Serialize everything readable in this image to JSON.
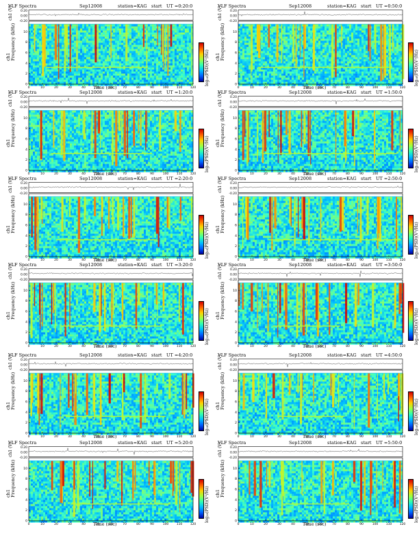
{
  "header": {
    "left": "VLF Spectra",
    "date": "Sep12008",
    "station": "station=KAG",
    "start": "start",
    "ut_prefix": "UT ="
  },
  "labels": {
    "channel": "ch1 (V)",
    "ylabel_line1": "ch1",
    "ylabel_line2": "Frequency (kHz)",
    "xlabel": "Time (sec)",
    "colorbar": "log₁₀(PSD)(V²/Hz)"
  },
  "chart_data": [
    {
      "type": "heatmap",
      "title_time": "0:20:0",
      "x": {
        "label": "Time (sec)",
        "range": [
          0,
          120
        ],
        "ticks": [
          0,
          10,
          20,
          30,
          40,
          50,
          60,
          70,
          80,
          90,
          100,
          110,
          120
        ]
      },
      "y": {
        "label": "Frequency (kHz)",
        "range": [
          0,
          12
        ],
        "ticks": [
          0,
          2,
          4,
          6,
          8,
          10
        ]
      },
      "ch_ticks": [
        "0.20",
        "0.00",
        "-0.20"
      ]
    },
    {
      "type": "heatmap",
      "title_time": "0:50:0",
      "x": {
        "label": "Time (sec)",
        "range": [
          0,
          120
        ],
        "ticks": [
          0,
          10,
          20,
          30,
          40,
          50,
          60,
          70,
          80,
          90,
          100,
          110,
          120
        ]
      },
      "y": {
        "label": "Frequency (kHz)",
        "range": [
          0,
          12
        ],
        "ticks": [
          0,
          2,
          4,
          6,
          8,
          10
        ]
      },
      "ch_ticks": [
        "0.20",
        "0.00",
        "-0.20"
      ]
    },
    {
      "type": "heatmap",
      "title_time": "1:20:0",
      "x": {
        "label": "Time (sec)",
        "range": [
          0,
          120
        ],
        "ticks": [
          0,
          10,
          20,
          30,
          40,
          50,
          60,
          70,
          80,
          90,
          100,
          110,
          120
        ]
      },
      "y": {
        "label": "Frequency (kHz)",
        "range": [
          0,
          12
        ],
        "ticks": [
          0,
          2,
          4,
          6,
          8,
          10
        ]
      },
      "ch_ticks": [
        "0.20",
        "0.00",
        "-0.20"
      ]
    },
    {
      "type": "heatmap",
      "title_time": "1:50:0",
      "x": {
        "label": "Time (sec)",
        "range": [
          0,
          120
        ],
        "ticks": [
          0,
          10,
          20,
          30,
          40,
          50,
          60,
          70,
          80,
          90,
          100,
          110,
          120
        ]
      },
      "y": {
        "label": "Frequency (kHz)",
        "range": [
          0,
          12
        ],
        "ticks": [
          0,
          2,
          4,
          6,
          8,
          10
        ]
      },
      "ch_ticks": [
        "0.20",
        "0.00",
        "-0.20"
      ]
    },
    {
      "type": "heatmap",
      "title_time": "2:20:0",
      "x": {
        "label": "Time (sec)",
        "range": [
          0,
          120
        ],
        "ticks": [
          0,
          10,
          20,
          30,
          40,
          50,
          60,
          70,
          80,
          90,
          100,
          110,
          120
        ]
      },
      "y": {
        "label": "Frequency (kHz)",
        "range": [
          0,
          12
        ],
        "ticks": [
          0,
          2,
          4,
          6,
          8,
          10
        ]
      },
      "ch_ticks": [
        "0.20",
        "0.00",
        "-0.20"
      ]
    },
    {
      "type": "heatmap",
      "title_time": "2:50:0",
      "x": {
        "label": "Time (sec)",
        "range": [
          0,
          120
        ],
        "ticks": [
          0,
          10,
          20,
          30,
          40,
          50,
          60,
          70,
          80,
          90,
          100,
          110,
          120
        ]
      },
      "y": {
        "label": "Frequency (kHz)",
        "range": [
          0,
          12
        ],
        "ticks": [
          0,
          2,
          4,
          6,
          8,
          10
        ]
      },
      "ch_ticks": [
        "0.20",
        "0.00",
        "-0.20"
      ]
    },
    {
      "type": "heatmap",
      "title_time": "3:20:0",
      "x": {
        "label": "Time (sec)",
        "range": [
          0,
          120
        ],
        "ticks": [
          0,
          10,
          20,
          30,
          40,
          50,
          60,
          70,
          80,
          90,
          100,
          110,
          120
        ]
      },
      "y": {
        "label": "Frequency (kHz)",
        "range": [
          0,
          12
        ],
        "ticks": [
          0,
          2,
          4,
          6,
          8,
          10
        ]
      },
      "ch_ticks": [
        "0.20",
        "0.00",
        "-0.20"
      ]
    },
    {
      "type": "heatmap",
      "title_time": "3:50:0",
      "x": {
        "label": "Time (sec)",
        "range": [
          0,
          120
        ],
        "ticks": [
          0,
          10,
          20,
          30,
          40,
          50,
          60,
          70,
          80,
          90,
          100,
          110,
          120
        ]
      },
      "y": {
        "label": "Frequency (kHz)",
        "range": [
          0,
          12
        ],
        "ticks": [
          0,
          2,
          4,
          6,
          8,
          10
        ]
      },
      "ch_ticks": [
        "0.20",
        "0.00",
        "-0.20"
      ]
    },
    {
      "type": "heatmap",
      "title_time": "4:20:0",
      "x": {
        "label": "Time (sec)",
        "range": [
          0,
          120
        ],
        "ticks": [
          0,
          10,
          20,
          30,
          40,
          50,
          60,
          70,
          80,
          90,
          100,
          110,
          120
        ]
      },
      "y": {
        "label": "Frequency (kHz)",
        "range": [
          0,
          12
        ],
        "ticks": [
          0,
          2,
          4,
          6,
          8,
          10
        ]
      },
      "ch_ticks": [
        "0.20",
        "0.00",
        "-0.20"
      ]
    },
    {
      "type": "heatmap",
      "title_time": "4:50:0",
      "x": {
        "label": "Time (sec)",
        "range": [
          0,
          120
        ],
        "ticks": [
          0,
          10,
          20,
          30,
          40,
          50,
          60,
          70,
          80,
          90,
          100,
          110,
          120
        ]
      },
      "y": {
        "label": "Frequency (kHz)",
        "range": [
          0,
          12
        ],
        "ticks": [
          0,
          2,
          4,
          6,
          8,
          10
        ]
      },
      "ch_ticks": [
        "0.20",
        "0.00",
        "-0.20"
      ]
    },
    {
      "type": "heatmap",
      "title_time": "5:20:0",
      "x": {
        "label": "Time (sec)",
        "range": [
          0,
          120
        ],
        "ticks": [
          0,
          10,
          20,
          30,
          40,
          50,
          60,
          70,
          80,
          90,
          100,
          110,
          120
        ]
      },
      "y": {
        "label": "Frequency (kHz)",
        "range": [
          0,
          12
        ],
        "ticks": [
          0,
          2,
          4,
          6,
          8,
          10
        ]
      },
      "ch_ticks": [
        "0.20",
        "0.00",
        "-0.20"
      ]
    },
    {
      "type": "heatmap",
      "title_time": "5:50:0",
      "x": {
        "label": "Time (sec)",
        "range": [
          0,
          120
        ],
        "ticks": [
          0,
          10,
          20,
          30,
          40,
          50,
          60,
          70,
          80,
          90,
          100,
          110,
          120
        ]
      },
      "y": {
        "label": "Frequency (kHz)",
        "range": [
          0,
          12
        ],
        "ticks": [
          0,
          2,
          4,
          6,
          8,
          10
        ]
      },
      "ch_ticks": [
        "0.20",
        "0.00",
        "-0.20"
      ]
    }
  ]
}
